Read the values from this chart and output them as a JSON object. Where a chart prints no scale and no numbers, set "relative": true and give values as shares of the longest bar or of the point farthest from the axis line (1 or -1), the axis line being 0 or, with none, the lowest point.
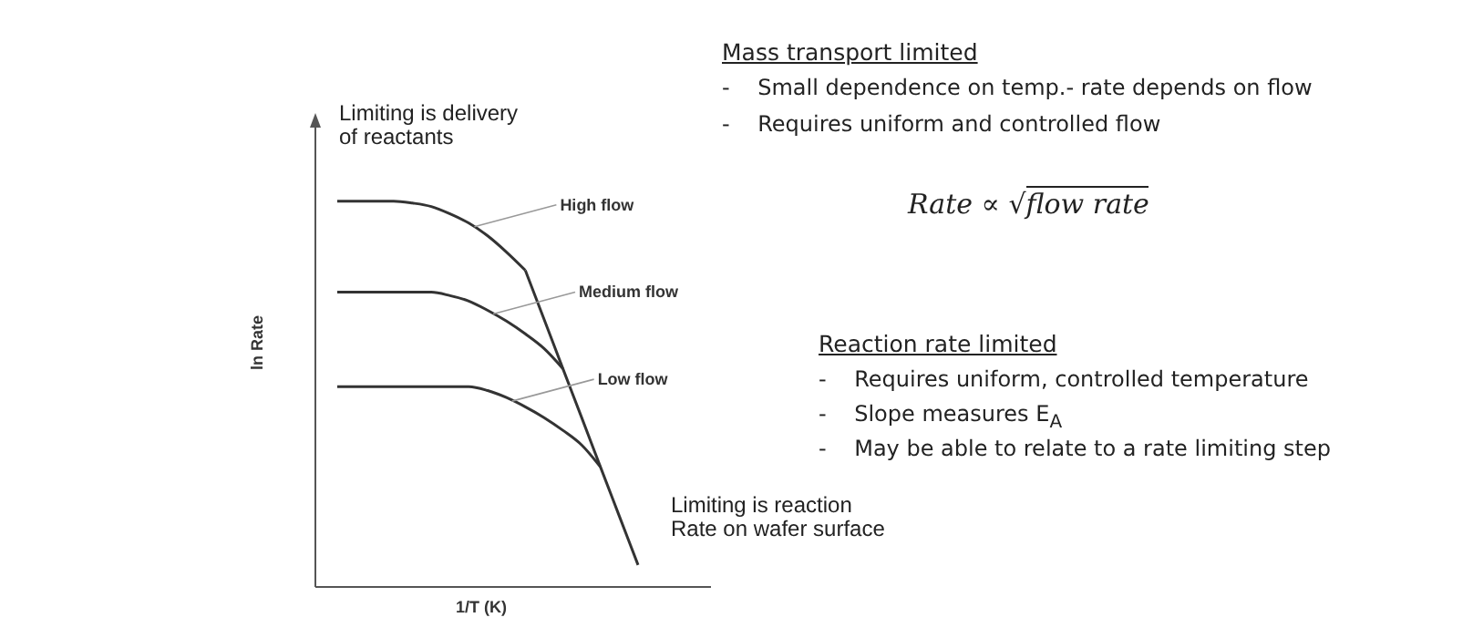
{
  "chart_data": {
    "type": "line",
    "relative": true,
    "xlabel": "1/T (K)",
    "ylabel": "ln Rate",
    "categories": [
      null,
      null,
      null,
      null,
      null,
      null,
      null,
      null,
      null,
      null,
      null,
      null,
      null,
      null,
      null,
      null,
      null
    ],
    "marker": "none",
    "line_style": "solid",
    "series": [
      {
        "name": "High flow",
        "color": "#333333",
        "values": [
          1,
          1,
          1,
          1,
          0.995,
          0.986,
          0.967,
          0.943,
          0.91,
          0.868,
          0.821,
          null,
          null,
          null,
          null,
          null,
          null
        ]
      },
      {
        "name": "Medium flow",
        "color": "#333333",
        "values": [
          0.764,
          0.764,
          0.764,
          0.764,
          0.764,
          0.764,
          0.755,
          0.741,
          0.717,
          0.689,
          0.656,
          0.618,
          0.566,
          null,
          null,
          null,
          null
        ]
      },
      {
        "name": "Low flow",
        "color": "#333333",
        "values": [
          0.519,
          0.519,
          0.519,
          0.519,
          0.519,
          0.519,
          0.519,
          0.519,
          0.509,
          0.491,
          0.467,
          0.439,
          0.406,
          0.368,
          0.311,
          null,
          null
        ]
      },
      {
        "color": "#333333",
        "values": [
          null,
          null,
          null,
          null,
          null,
          null,
          null,
          null,
          null,
          null,
          0.821,
          0.694,
          0.566,
          0.439,
          0.311,
          0.184,
          0.057
        ]
      }
    ],
    "annotations": [
      "Limiting is delivery\nof reactants",
      "Limiting is reaction\nRate on wafer surface",
      "Mass transport limited",
      "-    Small dependence on temp.- rate depends on flow",
      "-    Requires uniform and controlled flow",
      "Rate ∝ √flow rate",
      "Reaction rate limited",
      "-    Requires uniform, controlled temperature",
      "-    Slope measures E$_{A}$",
      "-    May be able to relate to a rate limiting step"
    ]
  }
}
